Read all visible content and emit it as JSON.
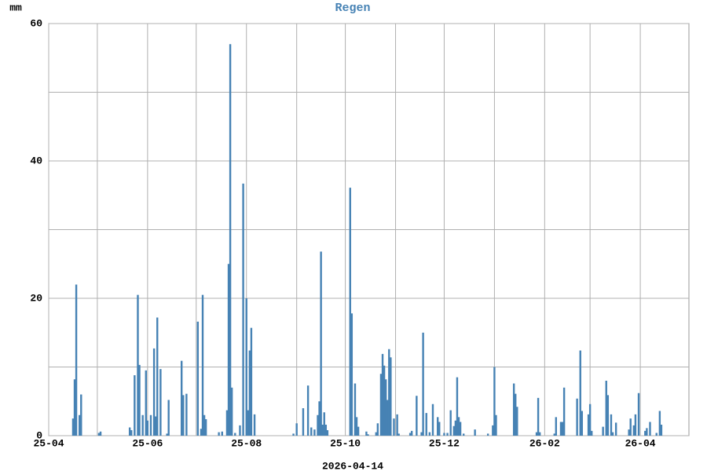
{
  "chart_data": {
    "type": "bar",
    "title": "Regen",
    "y_label": "mm",
    "x_label": "2026-04-14",
    "color": "#4682b4",
    "grid": true,
    "x": [
      15,
      16,
      17,
      19,
      20,
      31,
      32,
      50,
      51,
      53,
      55,
      56,
      58,
      60,
      61,
      63,
      65,
      66,
      67,
      69,
      73,
      74,
      82,
      83,
      85,
      92,
      94,
      95,
      96,
      97,
      105,
      107,
      110,
      111,
      112,
      113,
      115,
      118,
      120,
      122,
      123,
      124,
      125,
      127,
      151,
      153,
      157,
      160,
      162,
      164,
      166,
      167,
      168,
      169,
      170,
      171,
      172,
      186,
      187,
      189,
      190,
      191,
      196,
      197,
      202,
      203,
      205,
      206,
      207,
      208,
      209,
      210,
      211,
      213,
      215,
      216,
      223,
      224,
      227,
      230,
      231,
      233,
      235,
      237,
      240,
      241,
      244,
      246,
      248,
      250,
      251,
      252,
      253,
      254,
      256,
      263,
      271,
      274,
      275,
      276,
      287,
      288,
      289,
      301,
      302,
      303,
      312,
      313,
      316,
      317,
      318,
      326,
      328,
      329,
      333,
      334,
      335,
      342,
      344,
      345,
      347,
      348,
      350,
      358,
      359,
      361,
      362,
      364,
      368,
      369,
      371,
      375,
      377,
      378
    ],
    "values": [
      2.5,
      8.2,
      22,
      3,
      6,
      0.4,
      0.6,
      1.2,
      0.8,
      8.8,
      20.5,
      10.3,
      3,
      9.5,
      2.2,
      3,
      12.7,
      2.8,
      17.2,
      9.7,
      0.3,
      5.2,
      10.9,
      5.9,
      6.1,
      16.6,
      1,
      20.5,
      3,
      2.4,
      0.5,
      0.6,
      3.7,
      25,
      57,
      7,
      0.4,
      1.5,
      36.7,
      20,
      3.7,
      12.4,
      15.7,
      3.1,
      0.3,
      1.8,
      4,
      7.3,
      1.2,
      0.9,
      3,
      5,
      26.8,
      1.6,
      3.4,
      1.6,
      0.8,
      36.1,
      17.8,
      7.6,
      2.7,
      1.3,
      0.6,
      0.2,
      0.5,
      1.8,
      9,
      11.9,
      10.2,
      8.2,
      5.2,
      12.6,
      11.4,
      2.5,
      3.1,
      0.3,
      0.4,
      0.7,
      5.8,
      0.5,
      15,
      3.3,
      0.5,
      4.6,
      2.7,
      2,
      0.4,
      0.4,
      3.7,
      1.4,
      2.2,
      8.5,
      2.7,
      2,
      0.3,
      0.9,
      0.3,
      1.5,
      10,
      3,
      7.6,
      6.1,
      4.2,
      0.5,
      5.5,
      0.5,
      0.3,
      2.7,
      2,
      2,
      7,
      5.4,
      12.4,
      3.6,
      3.1,
      4.6,
      0.7,
      1.3,
      8,
      5.9,
      3.1,
      0.5,
      1.9,
      0.9,
      2.5,
      1.5,
      3.1,
      6.2,
      0.7,
      1.1,
      2,
      0.4,
      3.6,
      1.6
    ],
    "xlim": [
      0,
      395
    ],
    "xticks": [
      {
        "value": 0,
        "label": "25-04"
      },
      {
        "value": 61,
        "label": "25-06"
      },
      {
        "value": 122,
        "label": "25-08"
      },
      {
        "value": 183,
        "label": "25-10"
      },
      {
        "value": 244,
        "label": "25-12"
      },
      {
        "value": 306,
        "label": "26-02"
      },
      {
        "value": 365,
        "label": "26-04"
      }
    ],
    "x_minor_grid": [
      30,
      91,
      153,
      214,
      275,
      334
    ],
    "ylim": [
      0,
      60
    ],
    "yticks": [
      0,
      20,
      40,
      60
    ],
    "y_minor_grid": [
      10,
      30,
      50
    ]
  }
}
